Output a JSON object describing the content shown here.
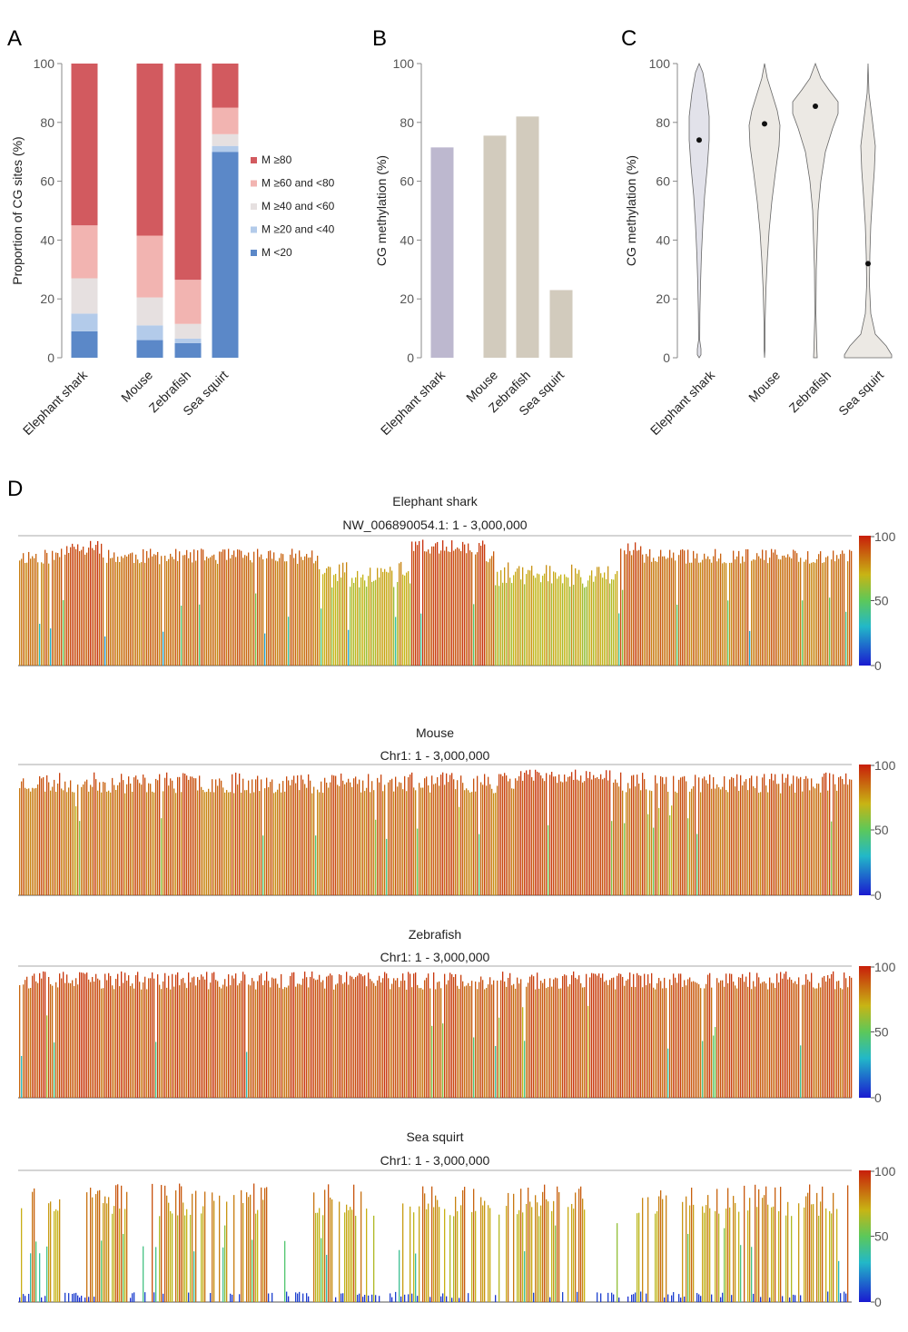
{
  "panel_labels": [
    "A",
    "B",
    "C",
    "D"
  ],
  "colors": {
    "m80": "#d25a5f",
    "m60": "#f2b4b1",
    "m40": "#e6e0e0",
    "m20": "#b3cbea",
    "m0": "#5b88c8",
    "barB_shark": "#bdb8cf",
    "barB_other": "#d2cbbd",
    "violin_shark": "#e2e2ea",
    "violin_other": "#ece9e4"
  },
  "chart_data": [
    {
      "panel": "A",
      "type": "bar",
      "stacked": true,
      "categories": [
        "Elephant shark",
        "Mouse",
        "Zebrafish",
        "Sea squirt"
      ],
      "ylabel": "Proportion of CG sites (%)",
      "ylim": [
        0,
        100
      ],
      "yticks": [
        "0",
        "20",
        "40",
        "60",
        "80",
        "100"
      ],
      "series": [
        {
          "name": "M <20",
          "color": "#5b88c8",
          "values": [
            9,
            6,
            5,
            70
          ]
        },
        {
          "name": "M ≥20 and <40",
          "color": "#b3cbea",
          "values": [
            6,
            5,
            1.5,
            2
          ]
        },
        {
          "name": "M ≥40 and <60",
          "color": "#e6e0e0",
          "values": [
            12,
            9.5,
            5,
            4
          ]
        },
        {
          "name": "M ≥60 and <80",
          "color": "#f2b4b1",
          "values": [
            18,
            21,
            15,
            9
          ]
        },
        {
          "name": "M ≥80",
          "color": "#d25a5f",
          "values": [
            55,
            58.5,
            73.5,
            15
          ]
        }
      ],
      "legend_order": [
        "M ≥80",
        "M ≥60 and <80",
        "M ≥40 and <60",
        "M ≥20 and <40",
        "M <20"
      ]
    },
    {
      "panel": "B",
      "type": "bar",
      "categories": [
        "Elephant shark",
        "Mouse",
        "Zebrafish",
        "Sea squirt"
      ],
      "values": [
        71.5,
        75.5,
        82,
        23
      ],
      "ylabel": "CG methylation (%)",
      "ylim": [
        0,
        100
      ],
      "yticks": [
        "0",
        "20",
        "40",
        "60",
        "80",
        "100"
      ]
    },
    {
      "panel": "C",
      "type": "violin",
      "categories": [
        "Elephant shark",
        "Mouse",
        "Zebrafish",
        "Sea squirt"
      ],
      "medians": [
        74,
        79.5,
        85.5,
        32
      ],
      "ylabel": "CG methylation (%)",
      "ylim": [
        0,
        100
      ],
      "yticks": [
        "0",
        "20",
        "40",
        "60",
        "80",
        "100"
      ]
    },
    {
      "panel": "D",
      "type": "bar",
      "species": [
        "Elephant shark",
        "Mouse",
        "Zebrafish",
        "Sea squirt"
      ],
      "regions": [
        "NW_006890054.1: 1 - 3,000,000",
        "Chr1: 1 - 3,000,000",
        "Chr1: 1 - 3,000,000",
        "Chr1: 1 - 3,000,000"
      ],
      "colorbar_ticks": [
        "100",
        "50",
        "0"
      ],
      "ylim": [
        0,
        100
      ],
      "x_range": [
        1,
        3000000
      ],
      "note": "per-CG methylation tracks across first 3 Mb"
    }
  ]
}
